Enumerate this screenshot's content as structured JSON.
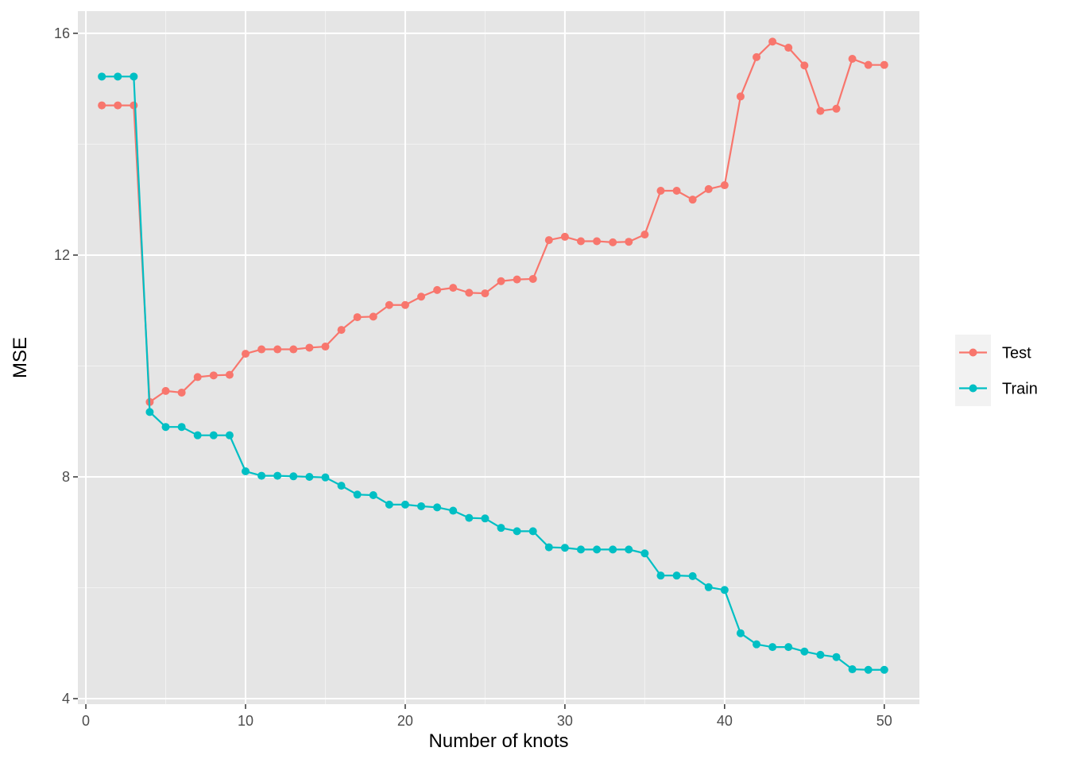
{
  "chart_data": {
    "type": "line",
    "title": "",
    "xlabel": "Number of knots",
    "ylabel": "MSE",
    "xlim": [
      -0.5,
      52.2
    ],
    "ylim": [
      3.9,
      16.4
    ],
    "xticks": [
      0,
      10,
      20,
      30,
      40,
      50
    ],
    "yticks": [
      4,
      8,
      12,
      16
    ],
    "x_minor_ticks": [
      5,
      15,
      25,
      35,
      45
    ],
    "y_minor_ticks": [
      6,
      10,
      14
    ],
    "grid": true,
    "legend_position": "right",
    "panel_background": "#E5E5E5",
    "x": [
      1,
      2,
      3,
      4,
      5,
      6,
      7,
      8,
      9,
      10,
      11,
      12,
      13,
      14,
      15,
      16,
      17,
      18,
      19,
      20,
      21,
      22,
      23,
      24,
      25,
      26,
      27,
      28,
      29,
      30,
      31,
      32,
      33,
      34,
      35,
      36,
      37,
      38,
      39,
      40,
      41,
      42,
      43,
      44,
      45,
      46,
      47,
      48,
      49,
      50
    ],
    "series": [
      {
        "name": "Test",
        "color": "#F8766D",
        "values": [
          14.7,
          14.7,
          14.7,
          9.35,
          9.55,
          9.52,
          9.8,
          9.83,
          9.84,
          10.22,
          10.3,
          10.3,
          10.3,
          10.33,
          10.35,
          10.65,
          10.88,
          10.89,
          11.1,
          11.1,
          11.25,
          11.37,
          11.41,
          11.32,
          11.31,
          11.53,
          11.56,
          11.57,
          12.27,
          12.33,
          12.25,
          12.25,
          12.23,
          12.24,
          12.37,
          13.16,
          13.16,
          13.0,
          13.19,
          13.26,
          14.86,
          15.57,
          15.85,
          15.74,
          15.42,
          14.6,
          14.64,
          15.54,
          15.43,
          15.43
        ]
      },
      {
        "name": "Train",
        "color": "#00BFC4",
        "values": [
          15.22,
          15.22,
          15.22,
          9.17,
          8.9,
          8.9,
          8.75,
          8.75,
          8.75,
          8.1,
          8.02,
          8.02,
          8.01,
          8.0,
          7.99,
          7.84,
          7.68,
          7.67,
          7.5,
          7.5,
          7.47,
          7.45,
          7.39,
          7.26,
          7.25,
          7.08,
          7.02,
          7.02,
          6.73,
          6.72,
          6.69,
          6.69,
          6.69,
          6.69,
          6.62,
          6.22,
          6.22,
          6.21,
          6.01,
          5.96,
          5.18,
          4.98,
          4.93,
          4.93,
          4.85,
          4.79,
          4.75,
          4.53,
          4.52,
          4.52
        ]
      }
    ],
    "legend": [
      "Test",
      "Train"
    ]
  }
}
